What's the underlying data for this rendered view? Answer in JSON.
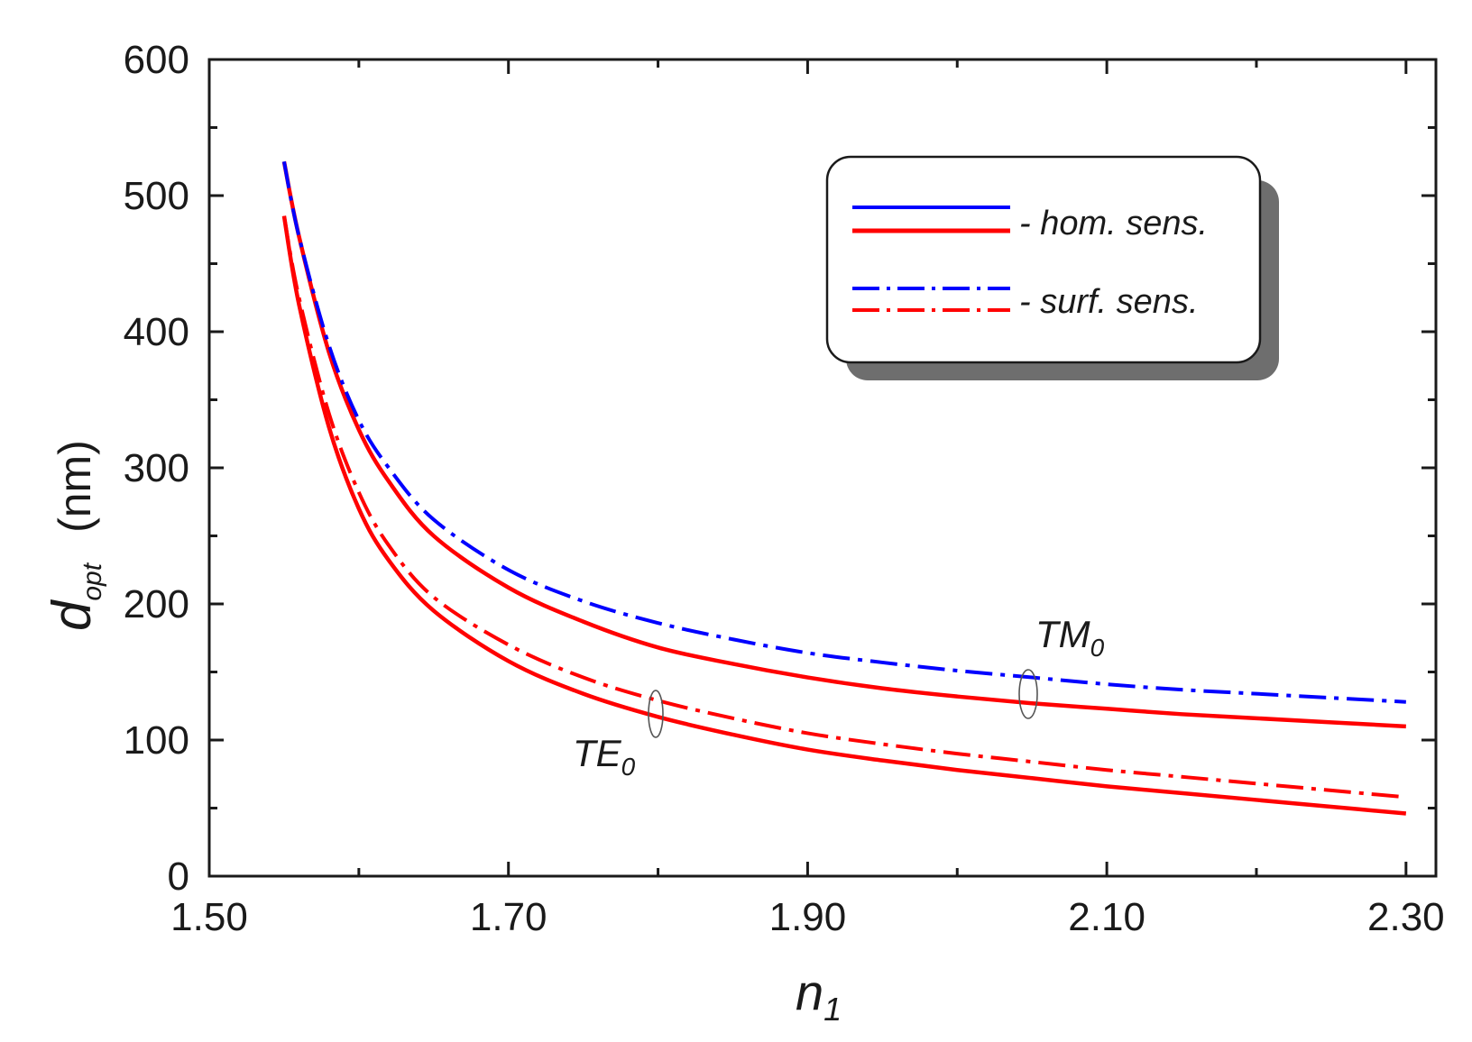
{
  "chart_data": {
    "type": "line",
    "title": "",
    "xlabel": "n",
    "xlabel_sub": "1",
    "ylabel": "d",
    "ylabel_sub": "opt",
    "ylabel_unit": "(nm)",
    "xlim": [
      1.5,
      2.32
    ],
    "ylim": [
      0,
      600
    ],
    "x_ticks": [
      1.5,
      1.7,
      1.9,
      2.1,
      2.3
    ],
    "x_tick_labels": [
      "1.50",
      "1.70",
      "1.90",
      "2.10",
      "2.30"
    ],
    "y_ticks": [
      0,
      100,
      200,
      300,
      400,
      500,
      600
    ],
    "y_tick_labels": [
      "0",
      "100",
      "200",
      "300",
      "400",
      "500",
      "600"
    ],
    "grid": false,
    "x": [
      1.55,
      1.56,
      1.58,
      1.6,
      1.62,
      1.65,
      1.7,
      1.75,
      1.8,
      1.85,
      1.9,
      1.95,
      2.0,
      2.05,
      2.1,
      2.15,
      2.2,
      2.25,
      2.3
    ],
    "series": [
      {
        "name": "TM0 hom. sens.",
        "color": "#ff0000",
        "style": "solid",
        "values": [
          525,
          470,
          385,
          328,
          290,
          250,
          212,
          187,
          168,
          156,
          146,
          138,
          132,
          127,
          123,
          119,
          116,
          113,
          110
        ]
      },
      {
        "name": "TM0 surf. sens.",
        "color": "#0000ff",
        "style": "dashdot",
        "values": [
          525,
          470,
          390,
          335,
          300,
          262,
          225,
          202,
          186,
          174,
          164,
          157,
          151,
          146,
          141,
          137,
          134,
          131,
          128
        ]
      },
      {
        "name": "TE0 hom. sens.",
        "color": "#ff0000",
        "style": "solid",
        "values": [
          485,
          420,
          330,
          270,
          232,
          195,
          158,
          134,
          117,
          104,
          93,
          85,
          78,
          72,
          66,
          61,
          56,
          51,
          46
        ]
      },
      {
        "name": "TE0 surf. sens.",
        "color": "#ff0000",
        "style": "dashdot",
        "values": [
          485,
          425,
          340,
          282,
          243,
          205,
          170,
          146,
          129,
          116,
          105,
          97,
          90,
          84,
          78,
          73,
          68,
          63,
          58
        ]
      }
    ],
    "legend": {
      "placement": "top-right",
      "entries": [
        {
          "label": "- hom. sens.",
          "style": "solid",
          "colors": [
            "#0000ff",
            "#ff0000"
          ]
        },
        {
          "label": "- surf. sens.",
          "style": "dashdot",
          "colors": [
            "#0000ff",
            "#ff0000"
          ]
        }
      ]
    },
    "annotations": [
      {
        "text": "TM",
        "sub": "0",
        "x": 2.05,
        "y": 140
      },
      {
        "text": "TE",
        "sub": "0",
        "x": 1.8,
        "y": 115
      }
    ]
  }
}
